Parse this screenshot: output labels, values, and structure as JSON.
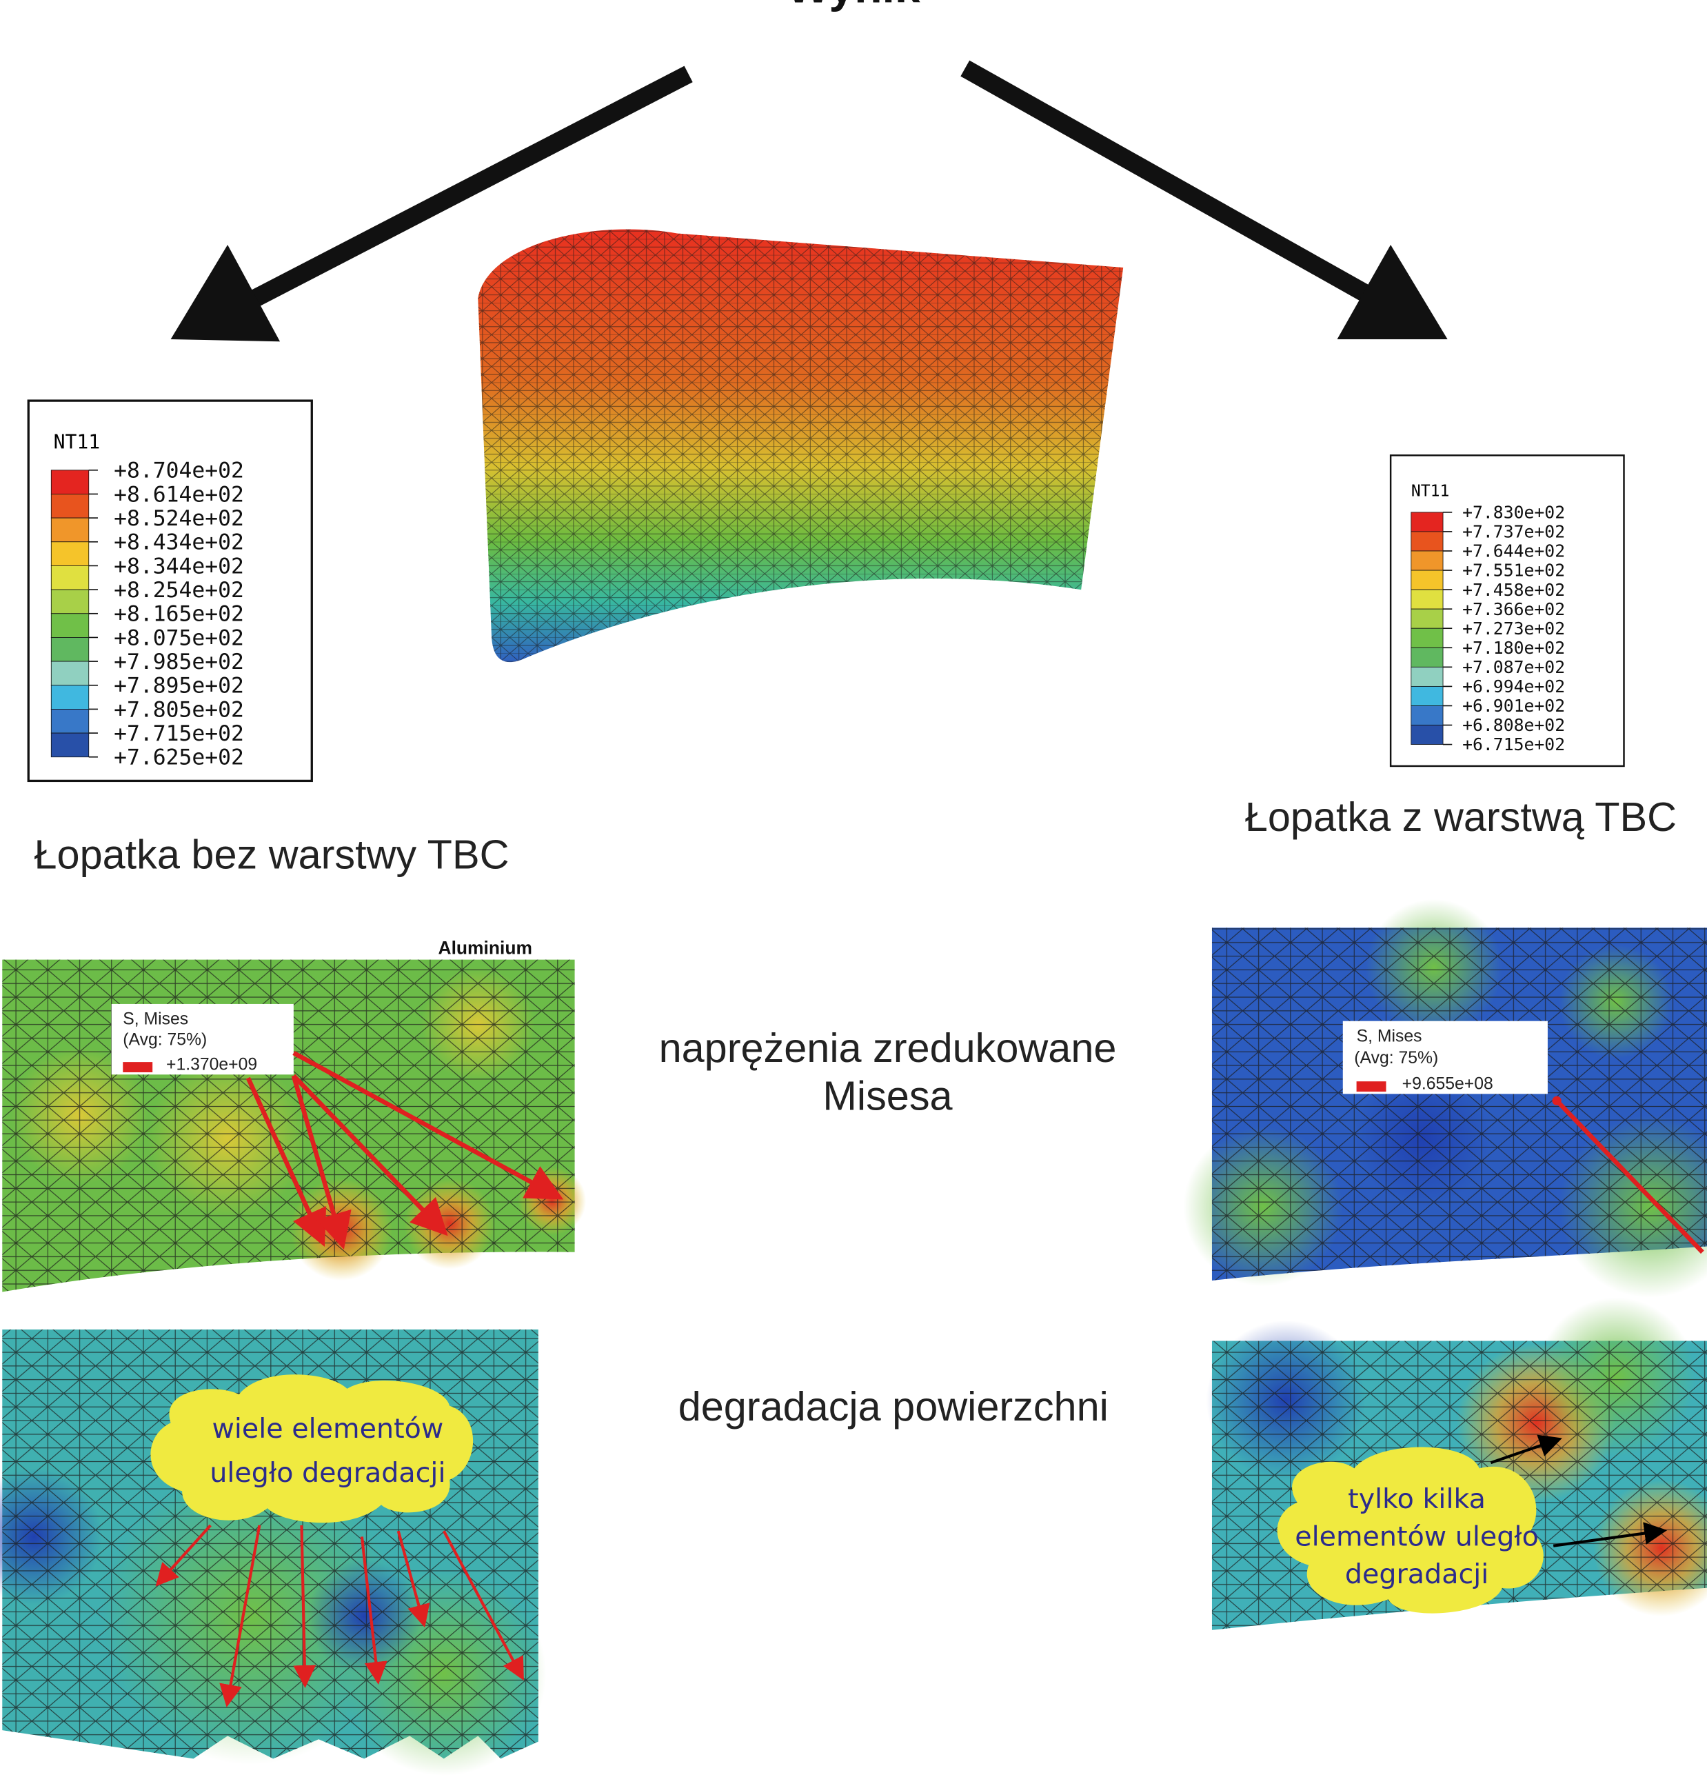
{
  "title": "Wynik",
  "left": {
    "legend": {
      "title": "NT11",
      "labels": [
        "+8.704e+02",
        "+8.614e+02",
        "+8.524e+02",
        "+8.434e+02",
        "+8.344e+02",
        "+8.254e+02",
        "+8.165e+02",
        "+8.075e+02",
        "+7.985e+02",
        "+7.895e+02",
        "+7.805e+02",
        "+7.715e+02",
        "+7.625e+02"
      ]
    },
    "caption": "Łopatka bez warstwy TBC",
    "material": "Aluminium",
    "stress_legend": {
      "title": "S, Mises",
      "avg": "(Avg: 75%)",
      "value": "+1.370e+09"
    },
    "cloud": [
      "wiele elementów",
      "uległo degradacji"
    ]
  },
  "right": {
    "legend": {
      "title": "NT11",
      "labels": [
        "+7.830e+02",
        "+7.737e+02",
        "+7.644e+02",
        "+7.551e+02",
        "+7.458e+02",
        "+7.366e+02",
        "+7.273e+02",
        "+7.180e+02",
        "+7.087e+02",
        "+6.994e+02",
        "+6.901e+02",
        "+6.808e+02",
        "+6.715e+02"
      ]
    },
    "caption": "Łopatka z warstwą TBC",
    "stress_legend": {
      "title": "S, Mises",
      "avg": "(Avg: 75%)",
      "value": "+9.655e+08"
    },
    "cloud": [
      "tylko kilka",
      "elementów uległo",
      "degradacji"
    ]
  },
  "rows": {
    "stress": [
      "naprężenia zredukowane",
      "Misesa"
    ],
    "degradation": "degradacja powierzchni"
  }
}
